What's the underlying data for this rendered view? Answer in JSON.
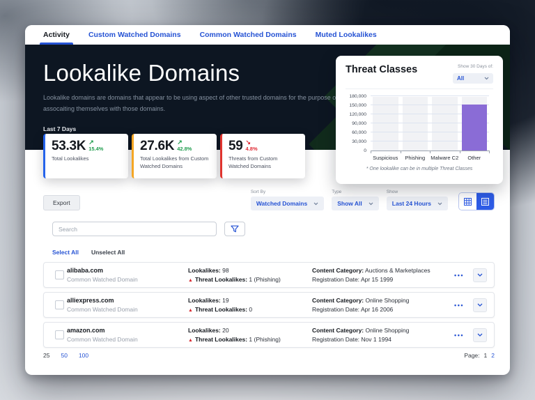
{
  "window": {
    "tabs": [
      {
        "label": "Activity",
        "active": true
      },
      {
        "label": "Custom Watched Domains",
        "active": false
      },
      {
        "label": "Common Watched Domains",
        "active": false
      },
      {
        "label": "Muted Lookalikes",
        "active": false
      }
    ]
  },
  "hero": {
    "title": "Lookalike Domains",
    "description": "Lookalike domains are domains that appear to be using aspect of other trusted domains for the purpose of assocaiting themselves with those domains.",
    "period_label": "Last 7 Days"
  },
  "stats": [
    {
      "value": "53.3K",
      "delta": "15.4%",
      "trend": "up",
      "label": "Total Lookalikes",
      "accent_color": "#2563eb"
    },
    {
      "value": "27.6K",
      "delta": "42.8%",
      "trend": "up",
      "label": "Total Lookalikes from Custom Watched Domains",
      "accent_color": "#f5a623"
    },
    {
      "value": "59",
      "delta": "4.8%",
      "trend": "down",
      "label": "Threats from Custom Watched Domains",
      "accent_color": "#e0342e"
    }
  ],
  "threat_panel": {
    "title": "Threat Classes",
    "dropdown_label": "Show 30 Days of:",
    "dropdown_value": "All",
    "footnote": "* One lookalike can be in multiple Threat Classes"
  },
  "chart_data": {
    "type": "bar",
    "title": "Threat Classes",
    "categories": [
      "Suspicious",
      "Phishing",
      "Malware C2",
      "Other"
    ],
    "values": [
      0,
      0,
      0,
      152000
    ],
    "xlabel": "",
    "ylabel": "",
    "ylim": [
      0,
      180000
    ],
    "yticks": [
      0,
      30000,
      60000,
      90000,
      120000,
      150000,
      180000
    ],
    "bar_color": "#8a6cd6",
    "grid": true,
    "legend": false
  },
  "toolbar": {
    "export_label": "Export",
    "filters": [
      {
        "label": "Sort By",
        "value": "Watched Domains"
      },
      {
        "label": "Type",
        "value": "Show All"
      },
      {
        "label": "Show",
        "value": "Last 24 Hours"
      }
    ]
  },
  "search": {
    "placeholder": "Search"
  },
  "selection": {
    "select_all": "Select All",
    "unselect_all": "Unselect All"
  },
  "labels": {
    "lookalikes": "Lookalikes:",
    "threat_lookalikes": "Threat Lookalikes:",
    "content_category": "Content Category:",
    "registration_date": "Registration Date:"
  },
  "rows": [
    {
      "domain": "alibaba.com",
      "type": "Common Watched Domain",
      "lookalikes": "98",
      "threat": "1 (Phishing)",
      "category": "Auctions & Marketplaces",
      "registration": "Apr 15 1999"
    },
    {
      "domain": "alliexpress.com",
      "type": "Common Watched Domain",
      "lookalikes": "19",
      "threat": "0",
      "category": "Online Shopping",
      "registration": "Apr 16 2006"
    },
    {
      "domain": "amazon.com",
      "type": "Common Watched Domain",
      "lookalikes": "20",
      "threat": "1 (Phishing)",
      "category": "Online Shopping",
      "registration": "Nov 1 1994"
    }
  ],
  "pagination": {
    "page_sizes": [
      "25",
      "50",
      "100"
    ],
    "active_size": "25",
    "page_label": "Page:",
    "pages": [
      "1",
      "2"
    ],
    "active_page": "1"
  },
  "icons": {
    "trend_up": "↗",
    "trend_down": "↘",
    "warning": "▲",
    "ellipsis": "•••"
  },
  "colors": {
    "accent": "#2653d4",
    "positive": "#1f9d4d",
    "negative": "#e02b35",
    "bar": "#8a6cd6"
  }
}
